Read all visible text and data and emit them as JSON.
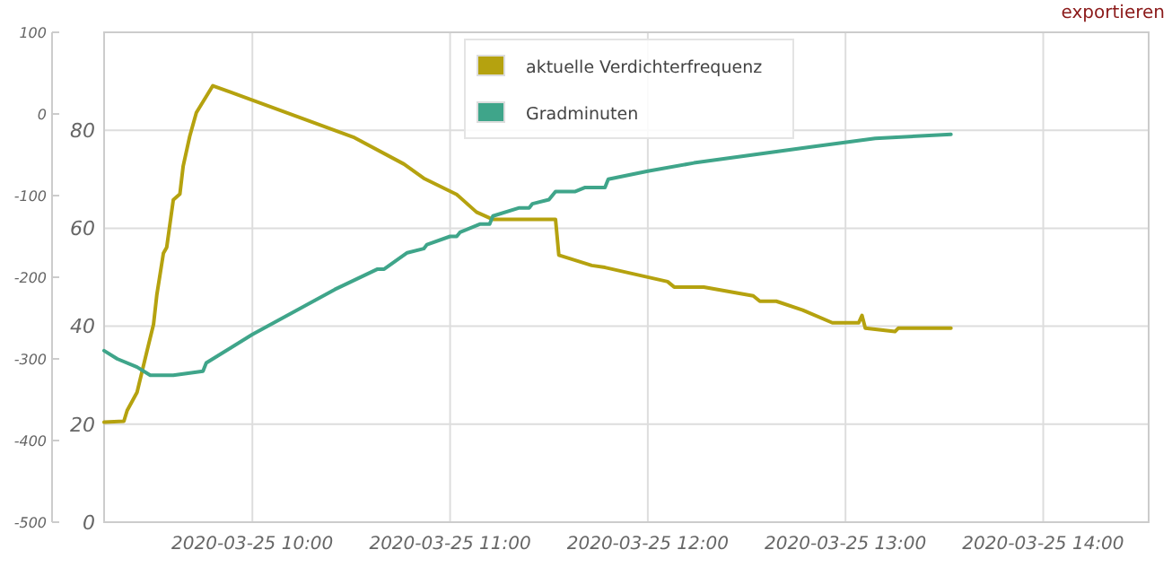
{
  "chart_data": {
    "type": "line",
    "annotations": [
      "exportieren"
    ],
    "xlim": [
      "2020-03-25T09:15",
      "2020-03-25T14:32"
    ],
    "xticks": [
      {
        "value": "2020-03-25T10:00",
        "label": "2020-03-25 10:00"
      },
      {
        "value": "2020-03-25T11:00",
        "label": "2020-03-25 11:00"
      },
      {
        "value": "2020-03-25T12:00",
        "label": "2020-03-25 12:00"
      },
      {
        "value": "2020-03-25T13:00",
        "label": "2020-03-25 13:00"
      },
      {
        "value": "2020-03-25T14:00",
        "label": "2020-03-25 14:00"
      }
    ],
    "ylim": [
      0,
      100
    ],
    "yticks": [
      0,
      20,
      40,
      60,
      80
    ],
    "y2lim": [
      -500,
      100
    ],
    "y2ticks": [
      -500,
      -400,
      -300,
      -200,
      -100,
      0,
      100
    ],
    "grid": true,
    "legend": "top",
    "marker": "none",
    "line_style": "solid",
    "series": [
      {
        "name": "aktuelle Verdichterfrequenz",
        "color": "#b5a20f",
        "x": [
          "2020-03-25T09:15",
          "2020-03-25T09:21",
          "2020-03-25T09:22",
          "2020-03-25T09:25",
          "2020-03-25T09:28",
          "2020-03-25T09:30",
          "2020-03-25T09:31",
          "2020-03-25T09:33",
          "2020-03-25T09:34",
          "2020-03-25T09:36",
          "2020-03-25T09:38",
          "2020-03-25T09:39",
          "2020-03-25T09:41",
          "2020-03-25T09:43",
          "2020-03-25T09:48",
          "2020-03-25T10:31",
          "2020-03-25T10:46",
          "2020-03-25T10:52",
          "2020-03-25T11:02",
          "2020-03-25T11:08",
          "2020-03-25T11:13",
          "2020-03-25T11:32",
          "2020-03-25T11:33",
          "2020-03-25T11:43",
          "2020-03-25T11:47",
          "2020-03-25T12:06",
          "2020-03-25T12:08",
          "2020-03-25T12:17",
          "2020-03-25T12:32",
          "2020-03-25T12:34",
          "2020-03-25T12:39",
          "2020-03-25T12:47",
          "2020-03-25T12:56",
          "2020-03-25T13:04",
          "2020-03-25T13:05",
          "2020-03-25T13:06",
          "2020-03-25T13:15",
          "2020-03-25T13:16",
          "2020-03-25T13:32"
        ],
        "values": [
          20.4,
          20.6,
          22.8,
          26.5,
          34.9,
          40.4,
          46.4,
          54.9,
          56.1,
          65.8,
          67,
          72.7,
          78.8,
          83.6,
          89.1,
          78.5,
          73.1,
          70.2,
          66.9,
          63.3,
          61.8,
          61.8,
          54.5,
          52.4,
          52,
          49.1,
          48,
          48,
          46.2,
          45.1,
          45.1,
          43.3,
          40.7,
          40.7,
          42.2,
          39.6,
          38.9,
          39.6,
          39.6
        ]
      },
      {
        "name": "Gradminuten",
        "color": "#3fa58a",
        "axis": "y2",
        "x": [
          "2020-03-25T09:15",
          "2020-03-25T09:19",
          "2020-03-25T09:25",
          "2020-03-25T09:29",
          "2020-03-25T09:36",
          "2020-03-25T09:45",
          "2020-03-25T09:46",
          "2020-03-25T10:00",
          "2020-03-25T10:16",
          "2020-03-25T10:25",
          "2020-03-25T10:38",
          "2020-03-25T10:40",
          "2020-03-25T10:47",
          "2020-03-25T10:52",
          "2020-03-25T10:53",
          "2020-03-25T11:00",
          "2020-03-25T11:02",
          "2020-03-25T11:03",
          "2020-03-25T11:09",
          "2020-03-25T11:12",
          "2020-03-25T11:13",
          "2020-03-25T11:21",
          "2020-03-25T11:24",
          "2020-03-25T11:25",
          "2020-03-25T11:30",
          "2020-03-25T11:32",
          "2020-03-25T11:38",
          "2020-03-25T11:41",
          "2020-03-25T11:47",
          "2020-03-25T11:48",
          "2020-03-25T12:00",
          "2020-03-25T12:14",
          "2020-03-25T12:32",
          "2020-03-25T12:50",
          "2020-03-25T13:09",
          "2020-03-25T13:32"
        ],
        "values": [
          -290,
          -300,
          -310,
          -320,
          -320,
          -315,
          -305,
          -270,
          -235,
          -215,
          -190,
          -190,
          -170,
          -165,
          -160,
          -150,
          -150,
          -145,
          -135,
          -135,
          -125,
          -115,
          -115,
          -110,
          -105,
          -95,
          -95,
          -90,
          -90,
          -80,
          -70,
          -60,
          -50,
          -40,
          -30,
          -25
        ]
      }
    ]
  }
}
